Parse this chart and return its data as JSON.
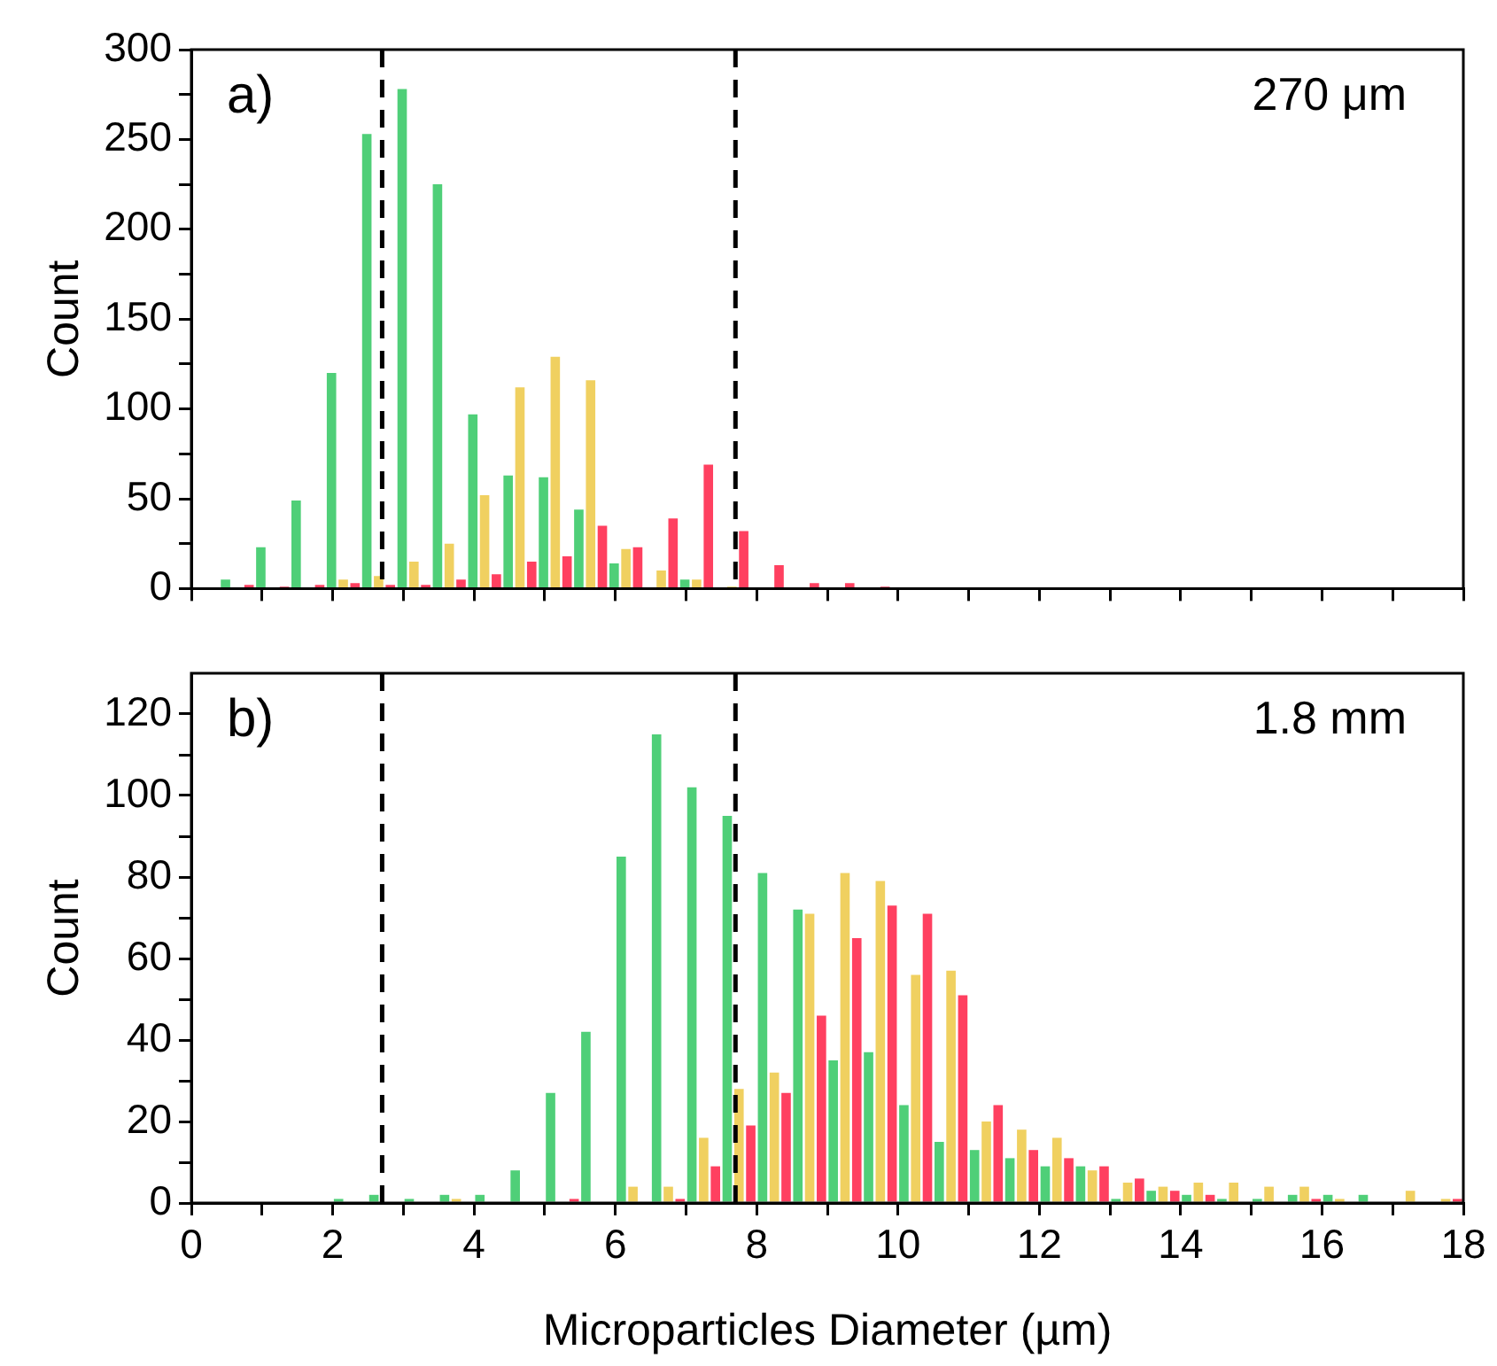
{
  "chart_data": [
    {
      "type": "histogram",
      "ylabel": "Count",
      "annotations": [
        "a)",
        "270 μm"
      ],
      "bins": [
        0.4,
        0.9,
        1.4,
        1.9,
        2.4,
        2.9,
        3.4,
        3.9,
        4.4,
        4.9,
        5.4,
        5.9,
        6.4,
        6.9,
        7.4,
        7.9,
        8.4,
        8.9,
        9.4,
        9.9,
        10.4
      ],
      "series": [
        {
          "color": "#4fcf78",
          "values": [
            5,
            23,
            49,
            120,
            253,
            278,
            225,
            97,
            63,
            62,
            44,
            14,
            0,
            5,
            0,
            0,
            0,
            0,
            0,
            0
          ]
        },
        {
          "color": "#f0d060",
          "values": [
            0,
            0,
            0,
            5,
            7,
            15,
            25,
            52,
            112,
            129,
            116,
            22,
            10,
            5,
            1,
            0,
            0,
            0,
            0,
            0
          ]
        },
        {
          "color": "#ff4060",
          "values": [
            2,
            1,
            2,
            3,
            2,
            2,
            5,
            8,
            15,
            18,
            35,
            23,
            39,
            69,
            32,
            13,
            3,
            3,
            1,
            0
          ]
        }
      ],
      "xlim": [
        0,
        18
      ],
      "xticks": [
        0,
        {
          "value": 1,
          "label": null
        },
        2,
        {
          "value": 3,
          "label": null
        },
        4,
        {
          "value": 5,
          "label": null
        },
        6,
        {
          "value": 7,
          "label": null
        },
        8,
        {
          "value": 9,
          "label": null
        },
        10,
        {
          "value": 11,
          "label": null
        },
        12,
        {
          "value": 13,
          "label": null
        },
        14,
        {
          "value": 15,
          "label": null
        },
        16,
        {
          "value": 17,
          "label": null
        },
        18
      ],
      "ylim": [
        0,
        300
      ],
      "yticks": [
        0,
        {
          "value": 25,
          "label": null
        },
        50,
        {
          "value": 75,
          "label": null
        },
        100,
        {
          "value": 125,
          "label": null
        },
        150,
        {
          "value": 175,
          "label": null
        },
        200,
        {
          "value": 225,
          "label": null
        },
        250,
        {
          "value": 275,
          "label": null
        },
        300
      ],
      "tick_labels": "y",
      "ref_lines": [
        {
          "axis": "x",
          "value": 2.7,
          "color": "#000000",
          "line_style": "dashed"
        },
        {
          "axis": "x",
          "value": 7.7,
          "color": "#000000",
          "line_style": "dashed"
        }
      ]
    },
    {
      "type": "histogram",
      "xlabel": "Microparticles Diameter (µm)",
      "ylabel": "Count",
      "annotations": [
        "b)",
        "1.8 mm"
      ],
      "bins": [
        0,
        0.5,
        1,
        1.5,
        2,
        2.5,
        3,
        3.5,
        4,
        4.5,
        5,
        5.5,
        6,
        6.5,
        7,
        7.5,
        8,
        8.5,
        9,
        9.5,
        10,
        10.5,
        11,
        11.5,
        12,
        12.5,
        13,
        13.5,
        14,
        14.5,
        15,
        15.5,
        16,
        16.5,
        17,
        17.5,
        18
      ],
      "series": [
        {
          "color": "#4fcf78",
          "values": [
            0,
            0,
            0,
            0,
            1,
            2,
            1,
            2,
            2,
            8,
            27,
            42,
            85,
            115,
            102,
            95,
            81,
            72,
            35,
            37,
            24,
            15,
            13,
            11,
            9,
            9,
            1,
            3,
            2,
            1,
            1,
            2,
            2,
            2,
            0,
            0
          ]
        },
        {
          "color": "#f0d060",
          "values": [
            0,
            0,
            0,
            0,
            0,
            0,
            0,
            1,
            0,
            0,
            0,
            0,
            4,
            4,
            16,
            28,
            32,
            71,
            81,
            79,
            56,
            57,
            20,
            18,
            16,
            8,
            5,
            4,
            5,
            5,
            4,
            4,
            1,
            0,
            3,
            1
          ]
        },
        {
          "color": "#ff4060",
          "values": [
            0,
            0,
            0,
            0,
            0,
            0,
            0,
            0,
            0,
            0,
            1,
            0,
            0,
            1,
            9,
            19,
            27,
            46,
            65,
            73,
            71,
            51,
            24,
            13,
            11,
            9,
            6,
            3,
            2,
            0,
            0,
            1,
            0,
            0,
            0,
            1
          ]
        }
      ],
      "xlim": [
        0,
        18
      ],
      "xticks": [
        0,
        {
          "value": 1,
          "label": null
        },
        2,
        {
          "value": 3,
          "label": null
        },
        4,
        {
          "value": 5,
          "label": null
        },
        6,
        {
          "value": 7,
          "label": null
        },
        8,
        {
          "value": 9,
          "label": null
        },
        10,
        {
          "value": 11,
          "label": null
        },
        12,
        {
          "value": 13,
          "label": null
        },
        14,
        {
          "value": 15,
          "label": null
        },
        16,
        {
          "value": 17,
          "label": null
        },
        18
      ],
      "ylim": [
        0,
        130
      ],
      "yticks": [
        0,
        {
          "value": 10,
          "label": null
        },
        20,
        {
          "value": 30,
          "label": null
        },
        40,
        {
          "value": 50,
          "label": null
        },
        60,
        {
          "value": 70,
          "label": null
        },
        80,
        {
          "value": 90,
          "label": null
        },
        100,
        {
          "value": 110,
          "label": null
        },
        120
      ],
      "ref_lines": [
        {
          "axis": "x",
          "value": 2.7,
          "color": "#000000",
          "line_style": "dashed"
        },
        {
          "axis": "x",
          "value": 7.7,
          "color": "#000000",
          "line_style": "dashed"
        }
      ]
    }
  ]
}
